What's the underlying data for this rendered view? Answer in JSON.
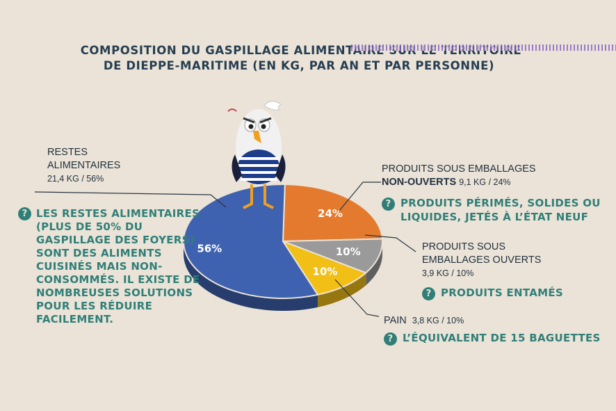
{
  "title": {
    "line1": "COMPOSITION DU GASPILLAGE ALIMENTAIRE SUR LE TERRITOIRE",
    "line2": "DE DIEPPE-MARITIME (EN KG, PAR AN ET PAR PERSONNE)"
  },
  "chart_data": {
    "type": "pie",
    "title": "COMPOSITION DU GASPILLAGE ALIMENTAIRE SUR LE TERRITOIRE DE DIEPPE-MARITIME (EN KG, PAR AN ET PAR PERSONNE)",
    "slices": [
      {
        "label": "RESTES ALIMENTAIRES",
        "value_kg": 21.4,
        "percent": 56,
        "color": "#3f62b0",
        "pct_label": "56%"
      },
      {
        "label": "PRODUITS SOUS EMBALLAGES NON-OUVERTS",
        "value_kg": 9.1,
        "percent": 24,
        "color": "#e47a2e",
        "pct_label": "24%"
      },
      {
        "label": "PRODUITS SOUS EMBALLAGES OUVERTS",
        "value_kg": 3.9,
        "percent": 10,
        "color": "#9a9a9a",
        "pct_label": "10%"
      },
      {
        "label": "PAIN",
        "value_kg": 3.8,
        "percent": 10,
        "color": "#f2bf17",
        "pct_label": "10%"
      }
    ]
  },
  "labels": {
    "restes": {
      "line1": "RESTES",
      "line2": "ALIMENTAIRES",
      "value": "21,4 KG / 56%"
    },
    "non_ouverts": {
      "line1": "PRODUITS SOUS EMBALLAGES",
      "bold": "NON-OUVERTS",
      "value": "9,1 KG / 24%"
    },
    "ouverts": {
      "line1": "PRODUITS SOUS",
      "line2": "EMBALLAGES OUVERTS",
      "value": "3,9 KG / 10%"
    },
    "pain": {
      "name": "PAIN",
      "value": "3,8 KG / 10%"
    }
  },
  "notes": {
    "icon": "?",
    "restes": "LES RESTES ALIMENTAIRES (PLUS DE 50% DU GASPILLAGE DES FOYERS) SONT DES ALIMENTS CUISINÉS MAIS NON-CONSOMMÉS. IL EXISTE DE NOMBREUSES SOLUTIONS POUR LES RÉDUIRE FACILEMENT.",
    "non_ouverts_line1": "PRODUITS PÉRIMÉS, SOLIDES OU",
    "non_ouverts_line2": "LIQUIDES, JETÉS À L’ÉTAT NEUF",
    "ouverts": "PRODUITS ENTAMÉS",
    "pain": "L’ÉQUIVALENT DE 15 BAGUETTES"
  },
  "mascot": {
    "icon": "seagull-mascot-icon"
  }
}
